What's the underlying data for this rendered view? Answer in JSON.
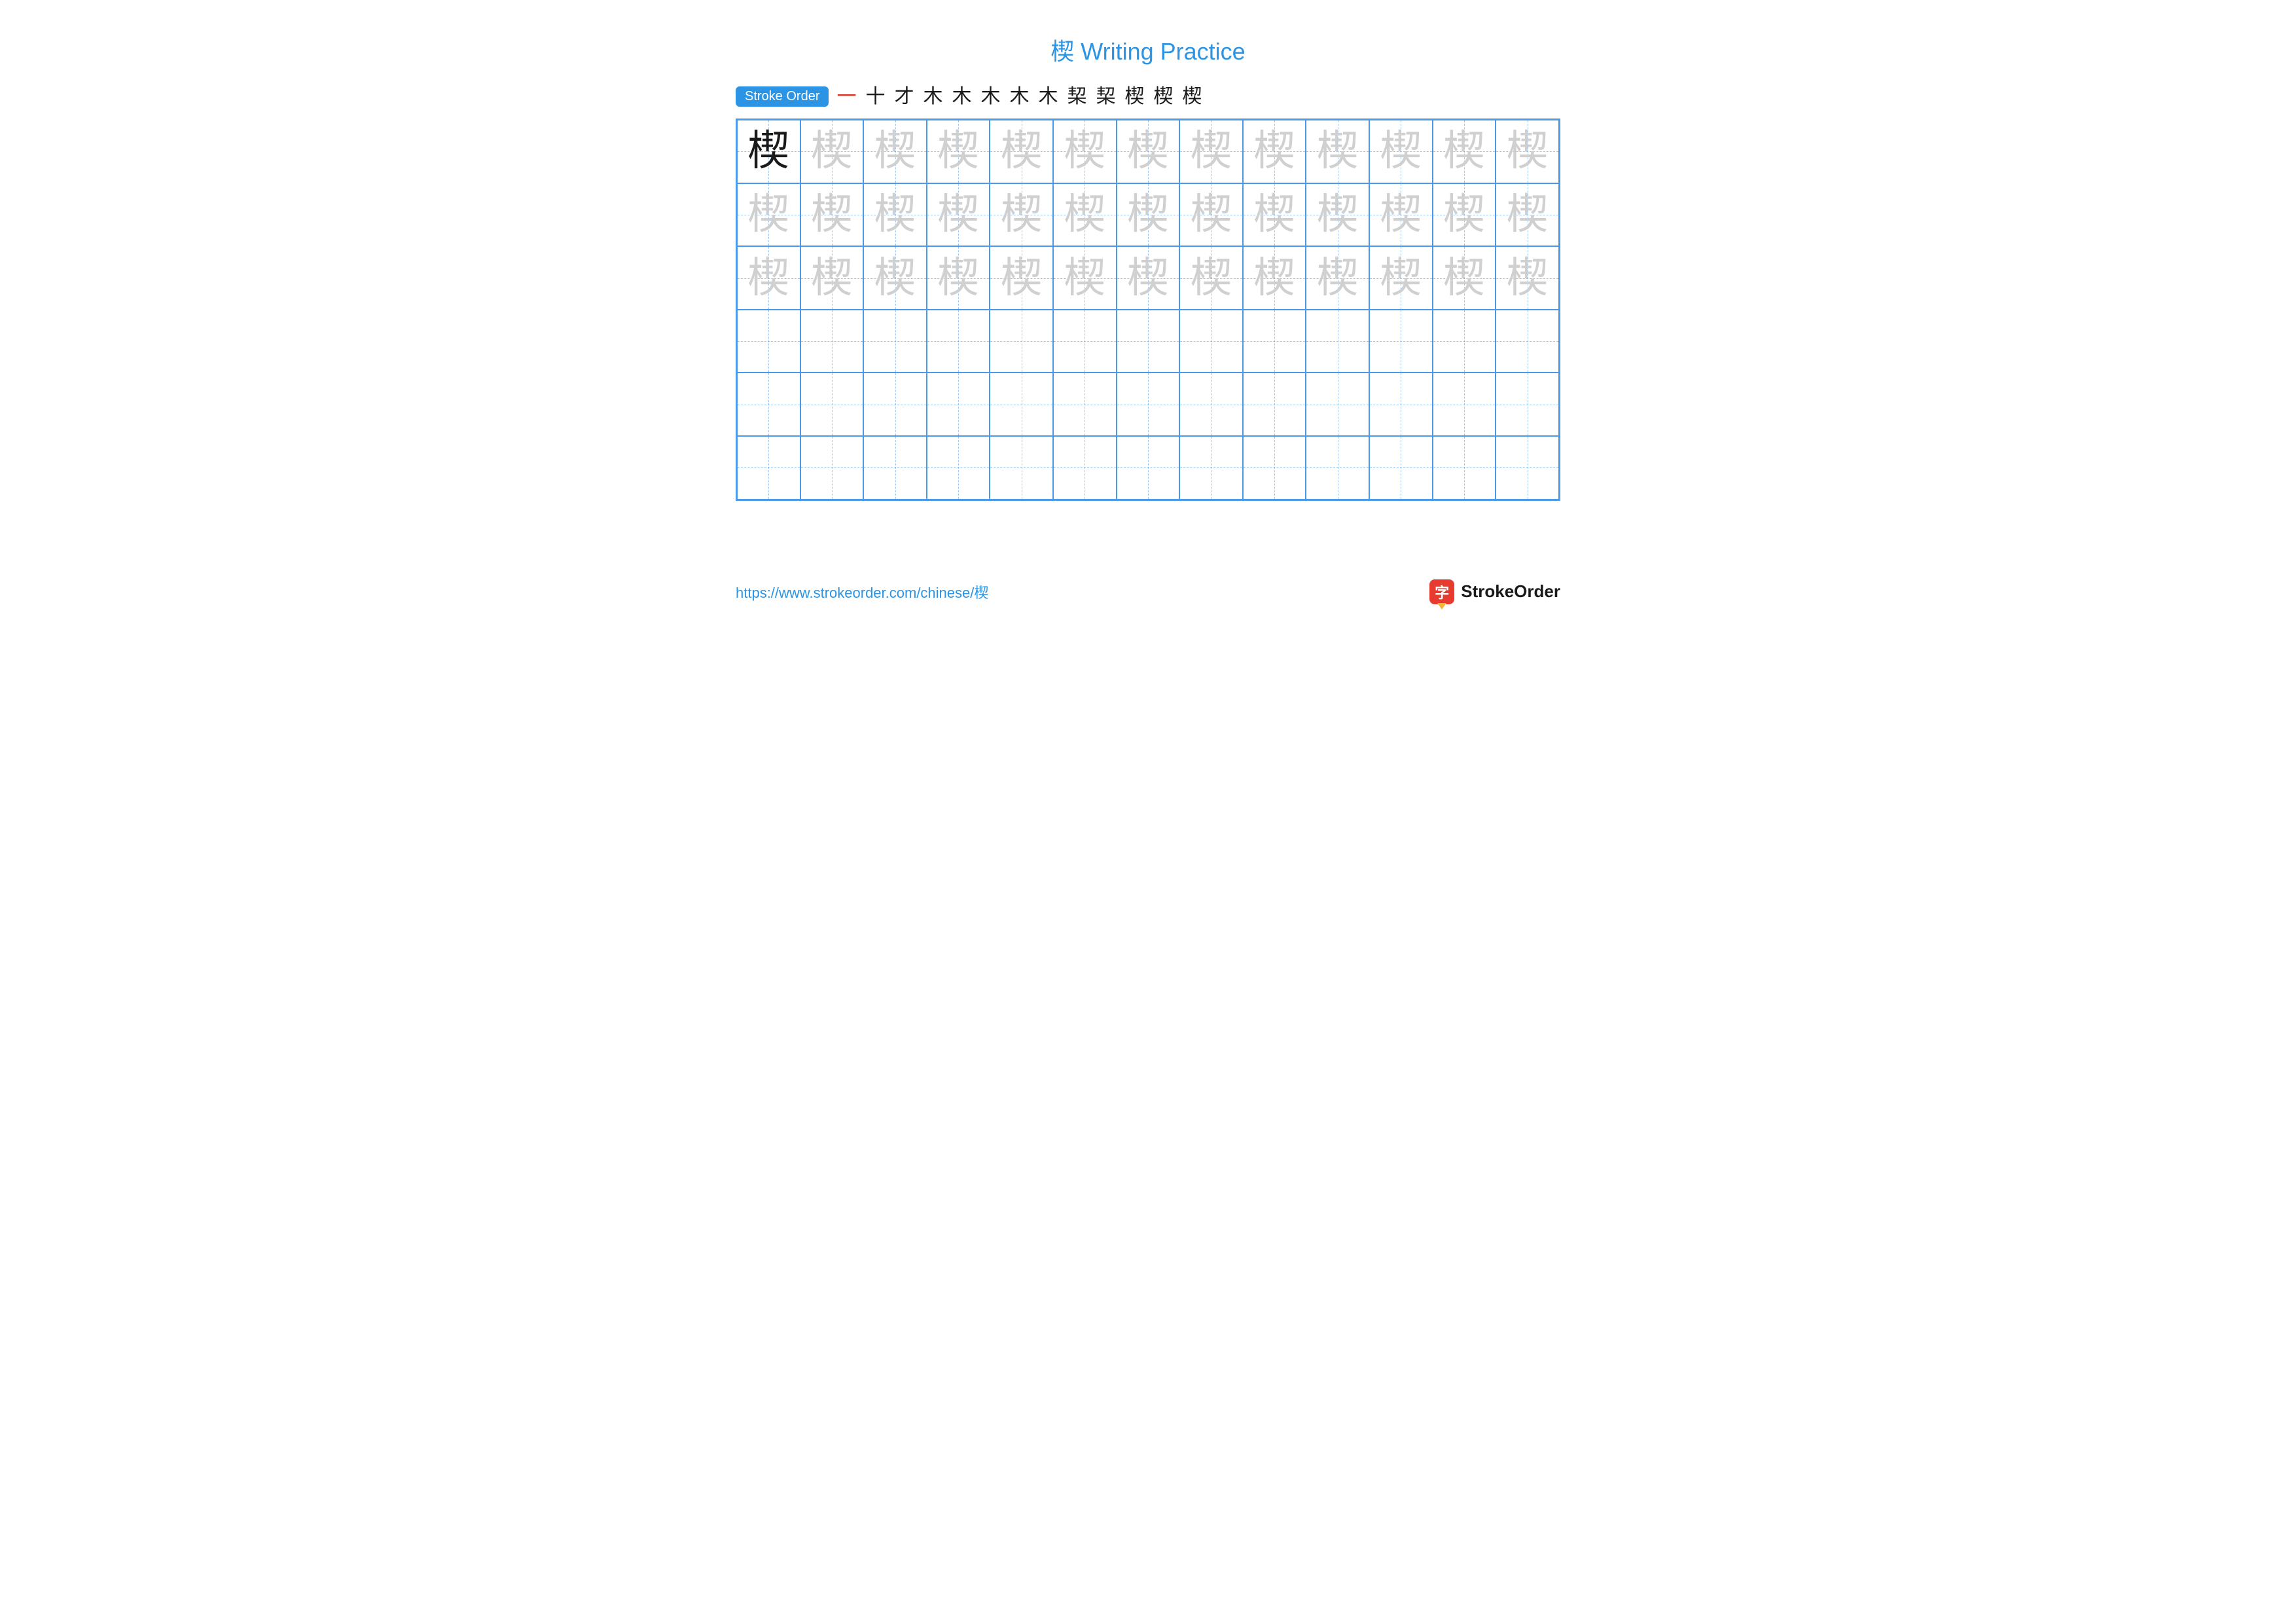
{
  "title": "楔 Writing Practice",
  "title_color": "#2b94e4",
  "stroke_label": "Stroke Order",
  "stroke_badge_bg": "#2b94e4",
  "character": "楔",
  "stroke_count": 13,
  "stroke_steps": [
    "一",
    "十",
    "才",
    "木",
    "木",
    "木",
    "木",
    "木",
    "栔",
    "栔",
    "楔",
    "楔",
    "楔"
  ],
  "stroke_black": "#1a1a1a",
  "stroke_red": "#d43a2a",
  "grid": {
    "rows": 6,
    "cols": 13,
    "border_color": "#4a9ae8",
    "guide_color": "#4a9ae8",
    "model_color": "#1a1a1a",
    "trace_color": "#d0d0d0",
    "trace_rows": 3,
    "blank_rows": 3
  },
  "url": "https://www.strokeorder.com/chinese/楔",
  "url_color": "#2b94e4",
  "logo": {
    "box_bg": "#e63b2e",
    "pencil_tip": "#f0b838",
    "char": "字",
    "text": "StrokeOrder",
    "text_color": "#1a1a1a"
  }
}
